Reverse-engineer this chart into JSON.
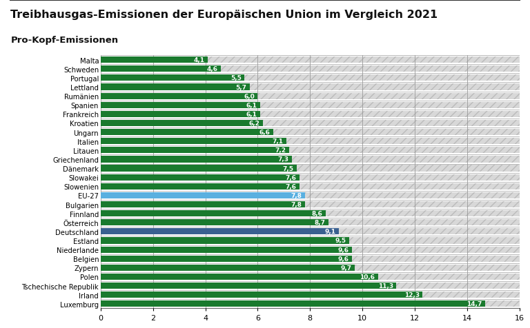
{
  "title": "Treibhausgas-Emissionen der Europäischen Union im Vergleich 2021",
  "subtitle": "Pro-Kopf-Emissionen",
  "categories": [
    "Malta",
    "Schweden",
    "Portugal",
    "Lettland",
    "Rumänien",
    "Spanien",
    "Frankreich",
    "Kroatien",
    "Ungarn",
    "Italien",
    "Litauen",
    "Griechenland",
    "Dänemark",
    "Slowakei",
    "Slowenien",
    "EU-27",
    "Bulgarien",
    "Finnland",
    "Österreich",
    "Deutschland",
    "Estland",
    "Niederlande",
    "Belgien",
    "Zypern",
    "Polen",
    "Tschechische Republik",
    "Irland",
    "Luxemburg"
  ],
  "values": [
    4.1,
    4.6,
    5.5,
    5.7,
    6.0,
    6.1,
    6.1,
    6.2,
    6.6,
    7.1,
    7.2,
    7.3,
    7.5,
    7.6,
    7.6,
    7.8,
    7.8,
    8.6,
    8.7,
    9.1,
    9.5,
    9.6,
    9.6,
    9.7,
    10.6,
    11.3,
    12.3,
    14.7
  ],
  "bar_colors": [
    "#1a7a2e",
    "#1a7a2e",
    "#1a7a2e",
    "#1a7a2e",
    "#1a7a2e",
    "#1a7a2e",
    "#1a7a2e",
    "#1a7a2e",
    "#1a7a2e",
    "#1a7a2e",
    "#1a7a2e",
    "#1a7a2e",
    "#1a7a2e",
    "#1a7a2e",
    "#1a7a2e",
    "#5ab0e0",
    "#1a7a2e",
    "#1a7a2e",
    "#1a7a2e",
    "#3a6090",
    "#1a7a2e",
    "#1a7a2e",
    "#1a7a2e",
    "#1a7a2e",
    "#1a7a2e",
    "#1a7a2e",
    "#1a7a2e",
    "#1a7a2e"
  ],
  "xlim": [
    0,
    16
  ],
  "xticks": [
    0,
    2,
    4,
    6,
    8,
    10,
    12,
    14,
    16
  ],
  "background_color": "#ffffff",
  "grid_color": "#999999",
  "bar_height": 0.7,
  "title_fontsize": 11.5,
  "subtitle_fontsize": 9.5,
  "label_fontsize": 7.2,
  "value_fontsize": 6.5,
  "tick_fontsize": 8,
  "hatch_pattern": "///",
  "hatch_facecolor": "#d8d8d8",
  "hatch_edgecolor": "#bbbbbb"
}
